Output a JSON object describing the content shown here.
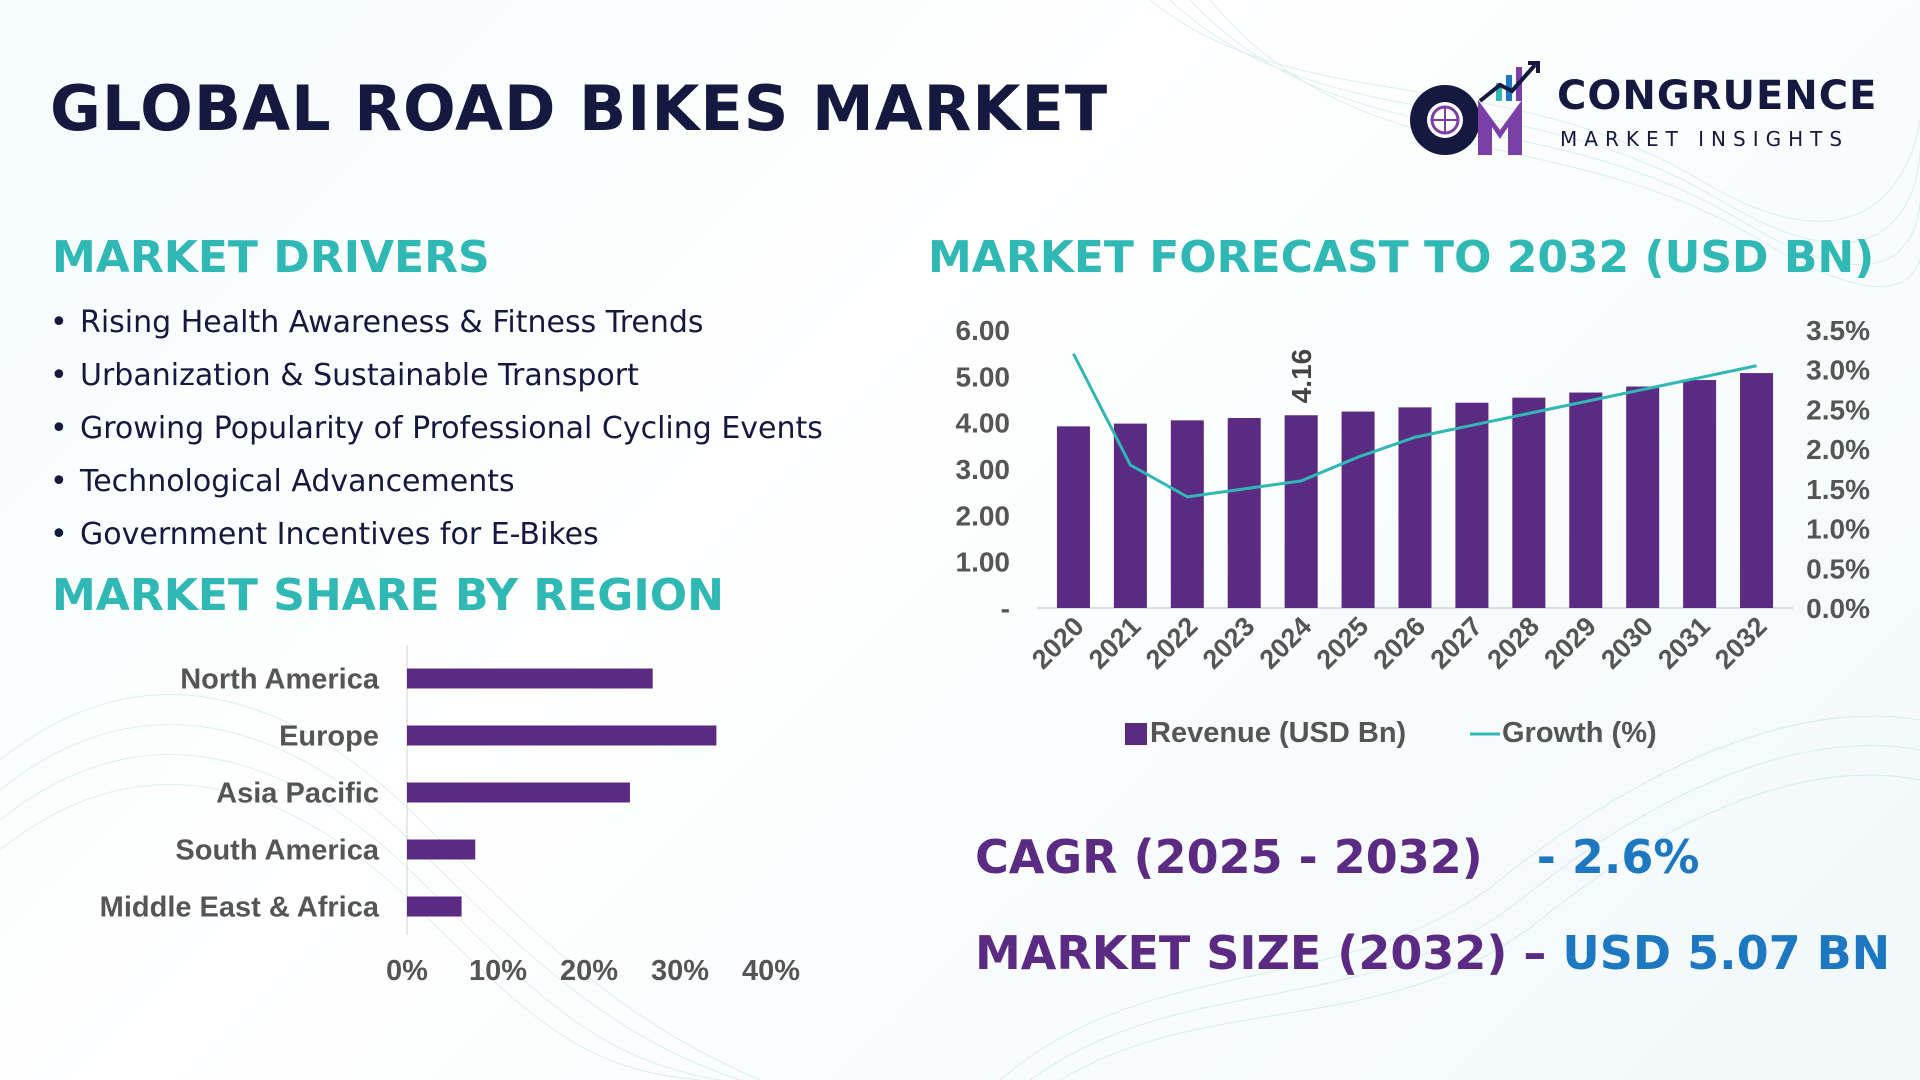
{
  "title": "GLOBAL ROAD BIKES MARKET",
  "logo": {
    "name": "CONGRUENCE",
    "tagline": "MARKET INSIGHTS"
  },
  "drivers": {
    "title": "MARKET DRIVERS",
    "items": [
      "Rising Health Awareness & Fitness Trends",
      "Urbanization & Sustainable Transport",
      "Growing Popularity of Professional Cycling Events",
      "Technological Advancements",
      "Government Incentives for E-Bikes"
    ]
  },
  "region_title": "MARKET SHARE BY REGION",
  "forecast_title": "MARKET FORECAST TO 2032 (USD BN)",
  "cagr": {
    "label": "CAGR (2025 - 2032)",
    "value": "- 2.6%"
  },
  "market_size": {
    "label": "MARKET SIZE (2032) –",
    "value": "USD 5.07 BN"
  },
  "colors": {
    "bar": "#5b2a83",
    "line": "#2fb8b4",
    "heading": "#2fb8b4",
    "value": "#1d78c1"
  },
  "chart_data": [
    {
      "type": "bar",
      "categories": [
        "2020",
        "2021",
        "2022",
        "2023",
        "2024",
        "2025",
        "2026",
        "2027",
        "2028",
        "2029",
        "2030",
        "2031",
        "2032"
      ],
      "series": [
        {
          "name": "Revenue (USD Bn)",
          "type": "bar",
          "axis": "left",
          "values": [
            3.92,
            3.98,
            4.05,
            4.1,
            4.16,
            4.24,
            4.33,
            4.43,
            4.54,
            4.65,
            4.78,
            4.92,
            5.07
          ]
        },
        {
          "name": "Growth (%)",
          "type": "line",
          "axis": "right",
          "values": [
            3.2,
            1.8,
            1.4,
            1.5,
            1.6,
            1.9,
            2.15,
            2.3,
            2.45,
            2.6,
            2.75,
            2.9,
            3.05
          ]
        }
      ],
      "data_labels": [
        {
          "index": 4,
          "text": "4.16"
        }
      ],
      "y_ticks": [
        "-",
        "1.00",
        "2.00",
        "3.00",
        "4.00",
        "5.00",
        "6.00"
      ],
      "ylim": [
        0,
        6
      ],
      "y2_ticks": [
        "0.0%",
        "0.5%",
        "1.0%",
        "1.5%",
        "2.0%",
        "2.5%",
        "3.0%",
        "3.5%"
      ],
      "y2lim": [
        0,
        3.5
      ],
      "legend": "bottom"
    },
    {
      "type": "bar",
      "orientation": "horizontal",
      "categories": [
        "North America",
        "Europe",
        "Asia Pacific",
        "South America",
        "Middle East & Africa"
      ],
      "values": [
        27,
        34,
        24.5,
        7.5,
        6
      ],
      "x_ticks": [
        "0%",
        "10%",
        "20%",
        "30%",
        "40%"
      ],
      "xlim": [
        0,
        40
      ]
    }
  ]
}
